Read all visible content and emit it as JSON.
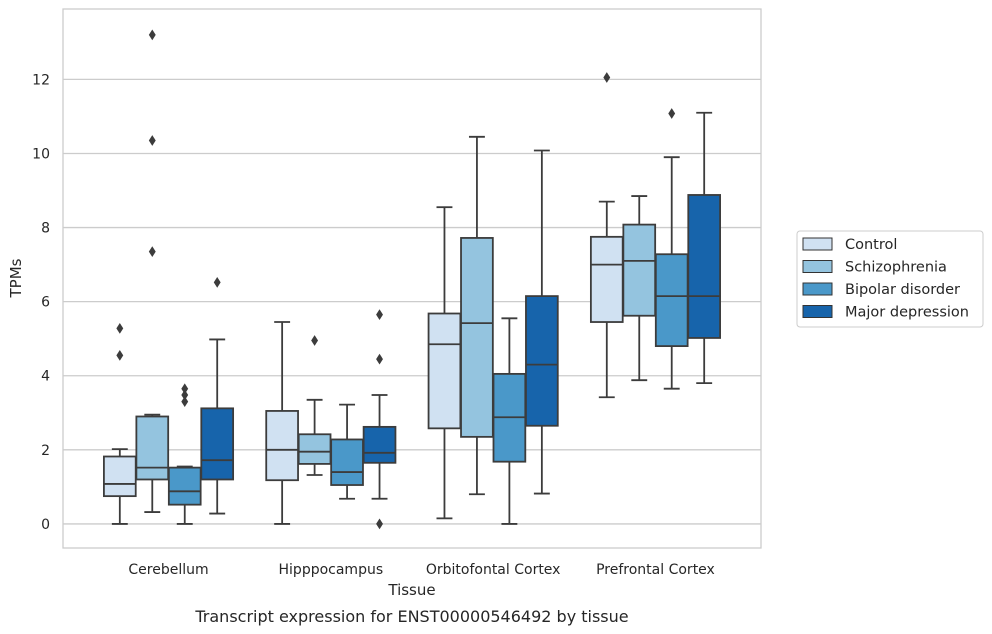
{
  "chart_data": {
    "type": "box",
    "title": "",
    "caption": "Transcript expression for ENST00000546492 by tissue",
    "xlabel": "Tissue",
    "ylabel": "TPMs",
    "ylim": [
      -0.65,
      13.9
    ],
    "yticks": [
      0,
      2,
      4,
      6,
      8,
      10,
      12
    ],
    "grid": "horizontal",
    "legend_position": "right",
    "categories": [
      "Cerebellum",
      "Hipppocampus",
      "Orbitofontal Cortex",
      "Prefrontal Cortex"
    ],
    "series": [
      {
        "name": "Control",
        "color": "#d0e1f2",
        "boxes": [
          {
            "whisker_low": 0.0,
            "q1": 0.75,
            "median": 1.08,
            "q3": 1.82,
            "whisker_high": 2.02,
            "outliers": [
              4.55,
              5.28
            ]
          },
          {
            "whisker_low": 0.0,
            "q1": 1.18,
            "median": 2.0,
            "q3": 3.05,
            "whisker_high": 5.45,
            "outliers": []
          },
          {
            "whisker_low": 0.15,
            "q1": 2.58,
            "median": 4.85,
            "q3": 5.68,
            "whisker_high": 8.55,
            "outliers": []
          },
          {
            "whisker_low": 3.42,
            "q1": 5.45,
            "median": 7.0,
            "q3": 7.75,
            "whisker_high": 8.7,
            "outliers": [
              12.05
            ]
          }
        ]
      },
      {
        "name": "Schizophrenia",
        "color": "#94c4df",
        "boxes": [
          {
            "whisker_low": 0.32,
            "q1": 1.2,
            "median": 1.52,
            "q3": 2.9,
            "whisker_high": 2.95,
            "outliers": [
              7.35,
              10.35,
              13.2
            ]
          },
          {
            "whisker_low": 1.32,
            "q1": 1.62,
            "median": 1.95,
            "q3": 2.42,
            "whisker_high": 3.35,
            "outliers": [
              4.95
            ]
          },
          {
            "whisker_low": 0.8,
            "q1": 2.35,
            "median": 5.42,
            "q3": 7.72,
            "whisker_high": 10.45,
            "outliers": []
          },
          {
            "whisker_low": 3.88,
            "q1": 5.62,
            "median": 7.1,
            "q3": 8.08,
            "whisker_high": 8.85,
            "outliers": []
          }
        ]
      },
      {
        "name": "Bipolar disorder",
        "color": "#4a98c9",
        "boxes": [
          {
            "whisker_low": 0.0,
            "q1": 0.52,
            "median": 0.88,
            "q3": 1.52,
            "whisker_high": 1.55,
            "outliers": [
              3.3,
              3.48,
              3.65
            ]
          },
          {
            "whisker_low": 0.68,
            "q1": 1.05,
            "median": 1.4,
            "q3": 2.28,
            "whisker_high": 3.22,
            "outliers": []
          },
          {
            "whisker_low": 0.0,
            "q1": 1.68,
            "median": 2.88,
            "q3": 4.05,
            "whisker_high": 5.55,
            "outliers": []
          },
          {
            "whisker_low": 3.65,
            "q1": 4.8,
            "median": 6.15,
            "q3": 7.28,
            "whisker_high": 9.9,
            "outliers": [
              11.08
            ]
          }
        ]
      },
      {
        "name": "Major depression",
        "color": "#1764ab",
        "boxes": [
          {
            "whisker_low": 0.28,
            "q1": 1.2,
            "median": 1.72,
            "q3": 3.12,
            "whisker_high": 4.98,
            "outliers": [
              6.52
            ]
          },
          {
            "whisker_low": 0.68,
            "q1": 1.65,
            "median": 1.92,
            "q3": 2.62,
            "whisker_high": 3.48,
            "outliers": [
              0.0,
              4.45,
              5.65
            ]
          },
          {
            "whisker_low": 0.82,
            "q1": 2.65,
            "median": 4.3,
            "q3": 6.15,
            "whisker_high": 10.08,
            "outliers": []
          },
          {
            "whisker_low": 3.8,
            "q1": 5.02,
            "median": 6.15,
            "q3": 8.88,
            "whisker_high": 11.1,
            "outliers": []
          }
        ]
      }
    ]
  }
}
